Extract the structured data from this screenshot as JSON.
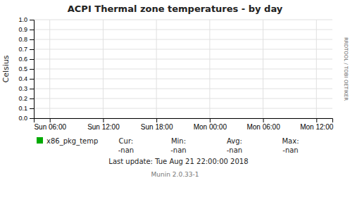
{
  "chart_data": {
    "type": "line",
    "title": "ACPI Thermal zone temperatures - by day",
    "ylabel": "Celsius",
    "categories": [
      "Sun 06:00",
      "Sun 12:00",
      "Sun 18:00",
      "Mon 00:00",
      "Mon 06:00",
      "Mon 12:00"
    ],
    "series": [
      {
        "name": "x86_pkg_temp",
        "color": "#00aa00",
        "values": [
          null,
          null,
          null,
          null,
          null,
          null
        ]
      }
    ],
    "ylim": [
      0.0,
      1.0
    ],
    "yticks": [
      {
        "value": 0.0,
        "label": "0.0"
      },
      {
        "value": 0.1,
        "label": "0.1"
      },
      {
        "value": 0.2,
        "label": "0.2"
      },
      {
        "value": 0.3,
        "label": "0.3"
      },
      {
        "value": 0.4,
        "label": "0.4"
      },
      {
        "value": 0.5,
        "label": "0.5"
      },
      {
        "value": 0.6,
        "label": "0.6"
      },
      {
        "value": 0.7,
        "label": "0.7"
      },
      {
        "value": 0.8,
        "label": "0.8"
      },
      {
        "value": 0.9,
        "label": "0.9"
      },
      {
        "value": 1.0,
        "label": "1.0"
      }
    ],
    "grid": true,
    "legend": "bottom",
    "annotations": [
      "Cur:",
      "-nan",
      "Min:",
      "-nan",
      "Avg:",
      "-nan",
      "Max:",
      "-nan",
      "Last update:  Tue Aug 21 22:00:00 2018",
      "Munin 2.0.33-1",
      "RRDTOOL / TOBI OETIKER"
    ]
  }
}
